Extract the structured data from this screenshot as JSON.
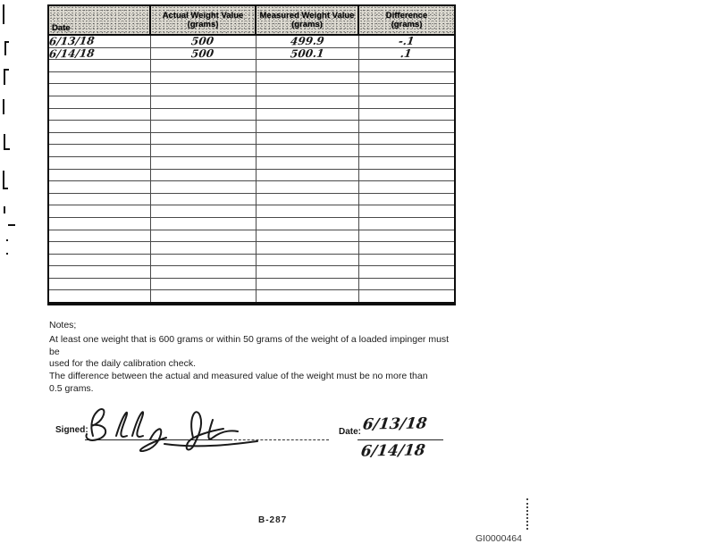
{
  "table": {
    "headers": {
      "date": "Date",
      "actual": "Actual Weight Value",
      "actual_sub": "(grams)",
      "measured": "Measured Weight Value",
      "measured_sub": "(grams)",
      "difference": "Difference",
      "difference_sub": "(grams)"
    },
    "rows": [
      {
        "date": "6/13/18",
        "actual": "500",
        "measured": "499.9",
        "difference": "-.1"
      },
      {
        "date": "6/14/18",
        "actual": "500",
        "measured": "500.1",
        "difference": ".1"
      }
    ],
    "empty_row_count": 20
  },
  "notes": {
    "heading": "Notes;",
    "line1": "At least one weight that is 600 grams or within 50 grams of the weight of a loaded impinger must be",
    "line2": "used for the daily calibration check.",
    "line3": "The difference between the actual and measured value of the weight must be no more than",
    "line4": "0.5 grams."
  },
  "signature": {
    "signed_label": "Signed:",
    "date_label": "Date:",
    "date_value_1": "6/13/18",
    "date_value_2": "6/14/18"
  },
  "footer": {
    "page_number": "B-287",
    "doc_id": "GI0000464"
  }
}
